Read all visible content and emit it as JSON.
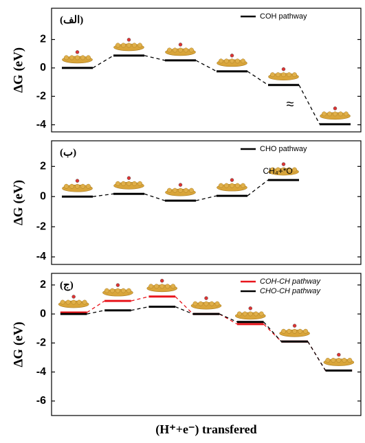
{
  "chart_data": [
    {
      "type": "energy-levels",
      "panel_label": "(الف)",
      "ylabel": "ΔG (eV)",
      "series": [
        {
          "name": "COH pathway",
          "color": "#000000",
          "values": [
            0,
            0.87,
            0.53,
            -0.24,
            -1.2,
            -3.96
          ]
        }
      ],
      "ylim": [
        -4.5,
        4.2
      ],
      "yticks": [
        -4,
        -2,
        0,
        2
      ],
      "annotation": "≈"
    },
    {
      "type": "energy-levels",
      "panel_label": "(ب)",
      "ylabel": "ΔG (eV)",
      "series": [
        {
          "name": "CHO pathway",
          "color": "#000000",
          "values": [
            0,
            0.18,
            -0.27,
            0.05,
            1.1
          ]
        }
      ],
      "ylim": [
        -4.5,
        3.7
      ],
      "yticks": [
        -4,
        -2,
        0,
        2
      ],
      "annotation": "CH₄+*O"
    },
    {
      "type": "energy-levels",
      "panel_label": "(ج)",
      "ylabel": "ΔG (eV)",
      "xlabel": "(H⁺+e⁻) transfered",
      "series": [
        {
          "name": "COH-CH pathway",
          "color": "#e8141b",
          "values": [
            0.1,
            0.9,
            1.2,
            0,
            -0.7,
            -1.9,
            -3.9
          ]
        },
        {
          "name": "CHO-CH pathway",
          "color": "#000000",
          "values": [
            0,
            0.25,
            0.5,
            0,
            -0.55,
            -1.9,
            -3.9
          ]
        }
      ],
      "ylim": [
        -7,
        2.8
      ],
      "yticks": [
        -6,
        -4,
        -2,
        0,
        2
      ]
    }
  ]
}
